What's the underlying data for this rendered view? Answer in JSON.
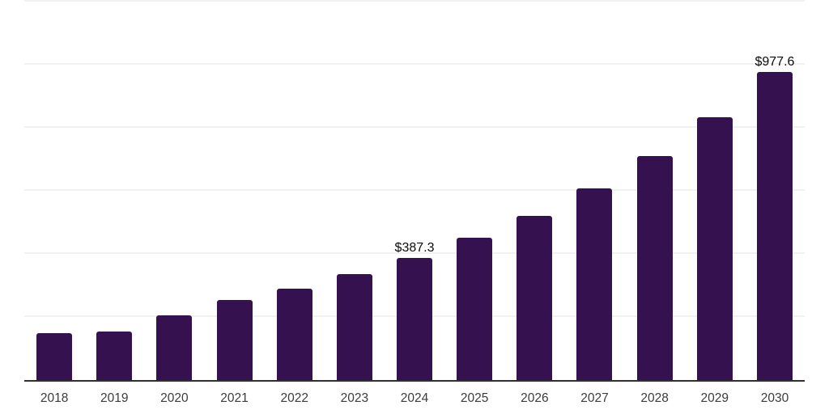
{
  "chart_data": {
    "type": "bar",
    "title": "",
    "xlabel": "",
    "ylabel": "",
    "categories": [
      "2018",
      "2019",
      "2020",
      "2021",
      "2022",
      "2023",
      "2024",
      "2025",
      "2026",
      "2027",
      "2028",
      "2029",
      "2030"
    ],
    "values": [
      149,
      154,
      205,
      254,
      290,
      336,
      387.3,
      450,
      521,
      608,
      710,
      833,
      977.6
    ],
    "data_labels": [
      "",
      "",
      "",
      "",
      "",
      "",
      "$387.3",
      "",
      "",
      "",
      "",
      "",
      "$977.6"
    ],
    "ylim": [
      0,
      1200
    ],
    "gridline_interval": 200,
    "grid": "horizontal",
    "y_axis_tick_labels_visible": false,
    "legend_position": "none",
    "colors": {
      "bar": "#351150",
      "gridline": "#f1f1f1",
      "axis_line": "#2f2f2f",
      "tick_label": "#3c3c3c",
      "data_label": "#0a0a0a",
      "background": "#ffffff"
    }
  }
}
